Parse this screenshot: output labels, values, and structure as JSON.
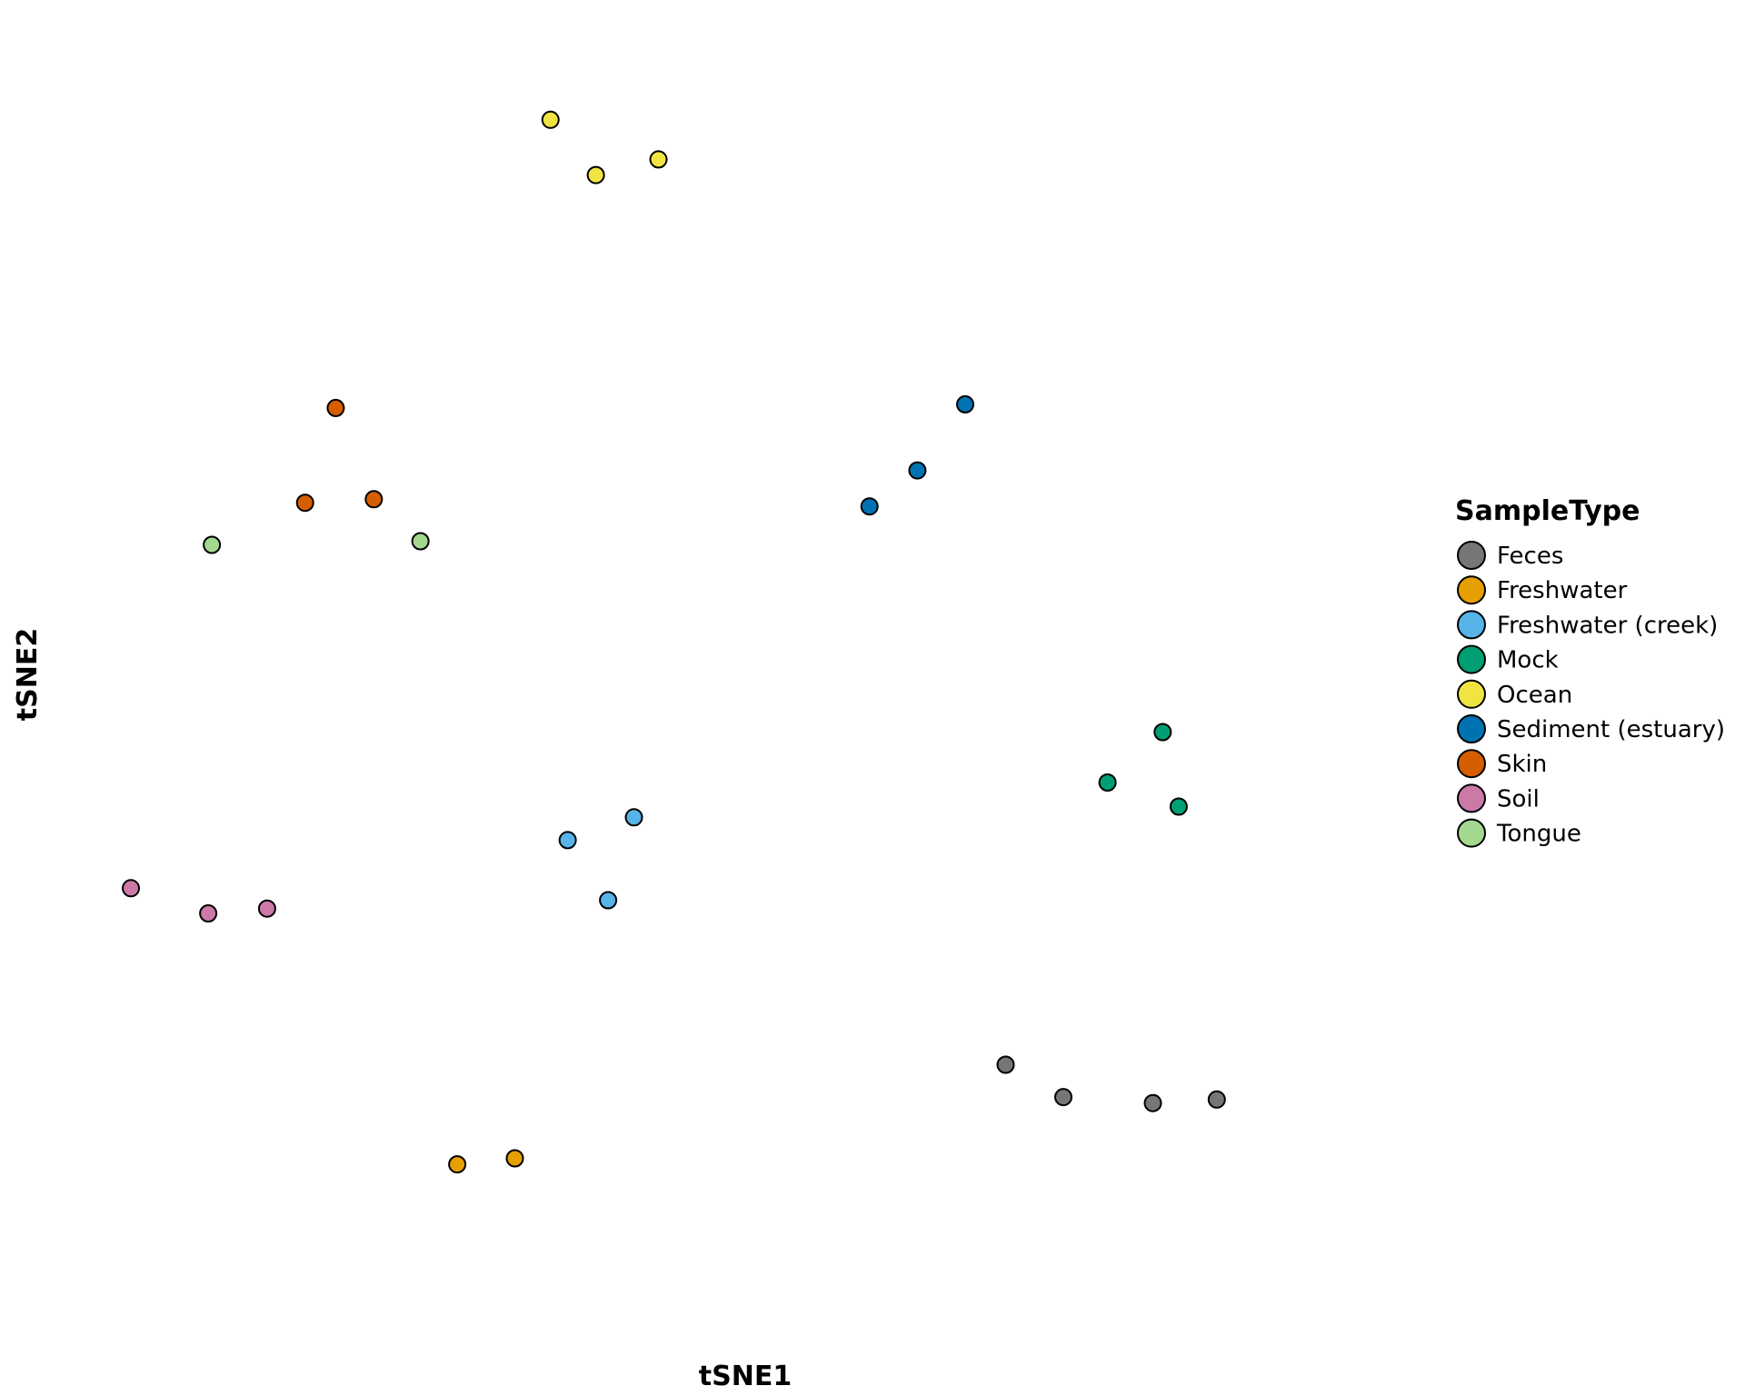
{
  "chart_data": {
    "type": "scatter",
    "xlabel": "tSNE1",
    "ylabel": "tSNE2",
    "xlim": [
      0,
      10
    ],
    "ylim": [
      0,
      10
    ],
    "grid": false,
    "legend": {
      "title": "SampleType",
      "placement": "right"
    },
    "series": [
      {
        "name": "Feces",
        "color": "#767676",
        "points": [
          [
            7.13,
            1.73
          ],
          [
            7.6,
            1.46
          ],
          [
            8.33,
            1.41
          ],
          [
            8.85,
            1.44
          ]
        ]
      },
      {
        "name": "Freshwater",
        "color": "#E69F00",
        "points": [
          [
            2.66,
            0.9
          ],
          [
            3.13,
            0.95
          ]
        ]
      },
      {
        "name": "Freshwater (creek)",
        "color": "#56B4E9",
        "points": [
          [
            3.56,
            3.6
          ],
          [
            4.1,
            3.79
          ],
          [
            3.89,
            3.1
          ]
        ]
      },
      {
        "name": "Mock",
        "color": "#009E73",
        "points": [
          [
            8.41,
            4.5
          ],
          [
            7.96,
            4.08
          ],
          [
            8.54,
            3.88
          ]
        ]
      },
      {
        "name": "Ocean",
        "color": "#F0E442",
        "points": [
          [
            3.42,
            9.6
          ],
          [
            3.79,
            9.14
          ],
          [
            4.3,
            9.27
          ]
        ]
      },
      {
        "name": "Sediment (estuary)",
        "color": "#0072B2",
        "points": [
          [
            6.8,
            7.23
          ],
          [
            6.41,
            6.68
          ],
          [
            6.02,
            6.38
          ]
        ]
      },
      {
        "name": "Skin",
        "color": "#D55E00",
        "points": [
          [
            1.67,
            7.2
          ],
          [
            1.42,
            6.41
          ],
          [
            1.98,
            6.44
          ]
        ]
      },
      {
        "name": "Soil",
        "color": "#CC79A7",
        "points": [
          [
            0.0,
            3.2
          ],
          [
            0.63,
            2.99
          ],
          [
            1.11,
            3.03
          ]
        ]
      },
      {
        "name": "Tongue",
        "color": "#A3D98E",
        "points": [
          [
            0.66,
            6.06
          ],
          [
            2.36,
            6.09
          ]
        ]
      }
    ]
  }
}
